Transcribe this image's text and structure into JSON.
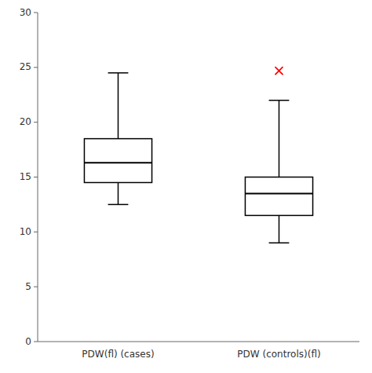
{
  "chart_data": {
    "type": "box",
    "categories": [
      "PDW(fl) (cases)",
      "PDW (controls)(fl)"
    ],
    "boxes": [
      {
        "q1": 14.5,
        "median": 16.3,
        "q3": 18.5,
        "whisker_low": 12.5,
        "whisker_high": 24.5,
        "fliers": {
          "values": [],
          "color": "#ff0000",
          "marker": "x"
        }
      },
      {
        "q1": 11.5,
        "median": 13.5,
        "q3": 15.0,
        "whisker_low": 9.0,
        "whisker_high": 22.0,
        "fliers": {
          "values": [
            24.7
          ],
          "color": "#ff0000",
          "marker": "x"
        }
      }
    ],
    "color": "#000000",
    "ylim": [
      0,
      30
    ],
    "yticks": [
      0,
      5,
      10,
      15,
      20,
      25,
      30
    ],
    "grid": false
  }
}
